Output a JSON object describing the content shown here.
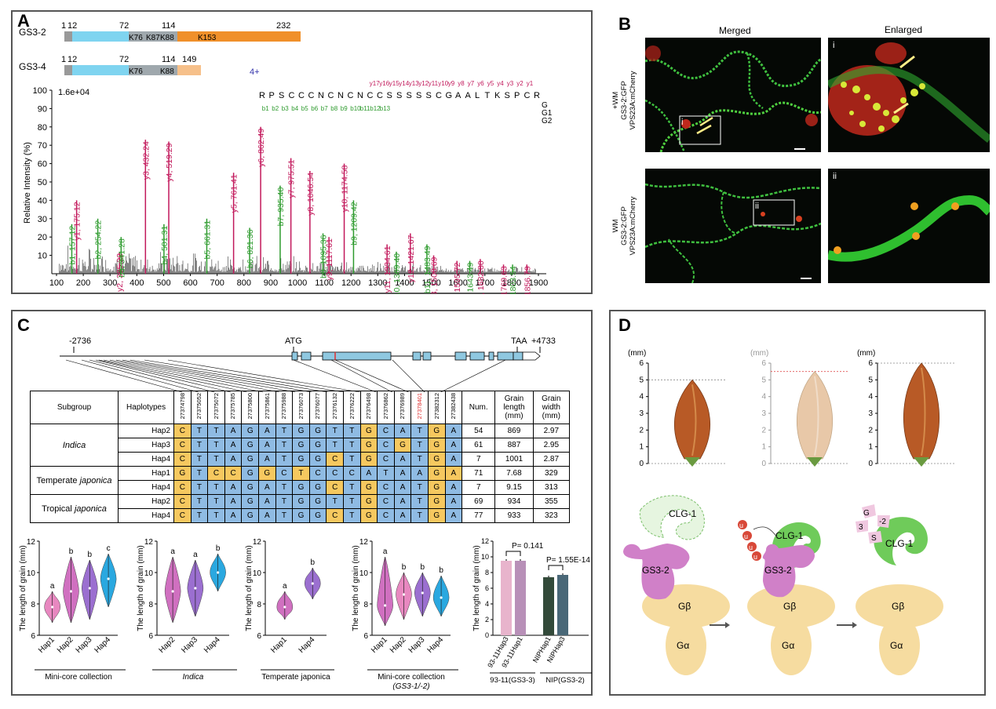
{
  "figure": {
    "panel_labels": [
      "A",
      "B",
      "C",
      "D"
    ]
  },
  "panel_a": {
    "proteins": [
      {
        "name": "GS3-2",
        "ticks": [
          "1",
          "12",
          "72",
          "114",
          "232"
        ],
        "sites": [
          "K76",
          "K87",
          "K88",
          "K153"
        ]
      },
      {
        "name": "GS3-4",
        "ticks": [
          "1",
          "12",
          "72",
          "114",
          "149"
        ],
        "sites": [
          "K76",
          "K88"
        ]
      }
    ],
    "charge": "4+",
    "peptide": [
      "R",
      "P",
      "S",
      "C",
      "C",
      "C",
      "N",
      "C",
      "N",
      "C",
      "N",
      "C",
      "C",
      "S",
      "S",
      "S",
      "S",
      "S",
      "C",
      "G",
      "A",
      "A",
      "L",
      "T",
      "K",
      "S",
      "P",
      "C",
      "R"
    ],
    "y_ions_top": [
      "y17",
      "y16",
      "y15",
      "y14",
      "y13",
      "y12",
      "y11",
      "y10",
      "y9",
      "y8",
      "y7",
      "y6",
      "y5",
      "y4",
      "y3",
      "y2",
      "y1"
    ],
    "b_ions_bottom": [
      "b1",
      "b2",
      "b3",
      "b4",
      "b5",
      "b6",
      "b7",
      "b8",
      "b9",
      "b10",
      "b11",
      "b12",
      "b13"
    ],
    "gly_mod": [
      "G",
      "G1",
      "G2"
    ],
    "scale_label": "1.6e+04",
    "ylabel": "Relative Intensity (%)",
    "yticks": [
      "10",
      "20",
      "30",
      "40",
      "50",
      "60",
      "70",
      "80",
      "90",
      "100"
    ],
    "xticks": [
      "100",
      "200",
      "300",
      "400",
      "500",
      "600",
      "700",
      "800",
      "900",
      "1000",
      "1100",
      "1200",
      "1300",
      "1400",
      "1500",
      "1600",
      "1700",
      "1800",
      "1900"
    ],
    "peaks": [
      {
        "label": "b1, 157.12",
        "mz": 157.12,
        "rel": 27,
        "ion": "b"
      },
      {
        "label": "y1, 175.12",
        "mz": 175.12,
        "rel": 40,
        "ion": "y"
      },
      {
        "label": "b2, 254.22",
        "mz": 254.22,
        "rel": 30,
        "ion": "b"
      },
      {
        "label": "y2, 335.22",
        "mz": 335.22,
        "rel": 12,
        "ion": "y"
      },
      {
        "label": "b3, 341.28",
        "mz": 341.28,
        "rel": 20,
        "ion": "b"
      },
      {
        "label": "y3, 432.24",
        "mz": 432.24,
        "rel": 73,
        "ion": "y"
      },
      {
        "label": "b4, 501.31",
        "mz": 501.31,
        "rel": 27,
        "ion": "b"
      },
      {
        "label": "y4, 519.29",
        "mz": 519.29,
        "rel": 72,
        "ion": "y"
      },
      {
        "label": "b5, 661.31",
        "mz": 661.31,
        "rel": 30,
        "ion": "b"
      },
      {
        "label": "y5, 761.41",
        "mz": 761.41,
        "rel": 55,
        "ion": "y"
      },
      {
        "label": "b6, 821.36",
        "mz": 821.36,
        "rel": 25,
        "ion": "b"
      },
      {
        "label": "y6, 862.49",
        "mz": 862.49,
        "rel": 80,
        "ion": "y"
      },
      {
        "label": "b7, 935.40",
        "mz": 935.4,
        "rel": 48,
        "ion": "b"
      },
      {
        "label": "y7, 975.51",
        "mz": 975.51,
        "rel": 63,
        "ion": "y"
      },
      {
        "label": "y8, 1046.54",
        "mz": 1046.54,
        "rel": 56,
        "ion": "y"
      },
      {
        "label": "b8, 1095.36",
        "mz": 1095.36,
        "rel": 22,
        "ion": "b"
      },
      {
        "label": "y9, 1117.61",
        "mz": 1117.61,
        "rel": 20,
        "ion": "y"
      },
      {
        "label": "y10, 1174.58",
        "mz": 1174.58,
        "rel": 60,
        "ion": "y"
      },
      {
        "label": "b9, 1209.42",
        "mz": 1209.42,
        "rel": 40,
        "ion": "b"
      },
      {
        "label": "y11, 1334.61",
        "mz": 1334.61,
        "rel": 16,
        "ion": "y"
      },
      {
        "label": "b10, 1369.40",
        "mz": 1369.4,
        "rel": 12,
        "ion": "b"
      },
      {
        "label": "y12, 1421.67",
        "mz": 1421.67,
        "rel": 22,
        "ion": "y"
      },
      {
        "label": "b11, 1483.49",
        "mz": 1483.49,
        "rel": 16,
        "ion": "b"
      },
      {
        "label": "y13, 1508.69",
        "mz": 1508.69,
        "rel": 10,
        "ion": "y"
      },
      {
        "label": "y14, 1595.72",
        "mz": 1595.72,
        "rel": 7,
        "ion": "y"
      },
      {
        "label": "b12, 1643.49",
        "mz": 1643.49,
        "rel": 7,
        "ion": "b"
      },
      {
        "label": "y15, 1682.80",
        "mz": 1682.8,
        "rel": 8,
        "ion": "y"
      },
      {
        "label": "y16, 1769.63",
        "mz": 1769.63,
        "rel": 5,
        "ion": "y"
      },
      {
        "label": "b13, 1803.54",
        "mz": 1803.54,
        "rel": 5,
        "ion": "b"
      },
      {
        "label": "y17, 1856.79",
        "mz": 1856.79,
        "rel": 5,
        "ion": "y"
      }
    ]
  },
  "panel_b": {
    "col_merged": "Merged",
    "col_enlarged": "Enlarged",
    "row1_label": [
      "+WM",
      "GS3-2:GFP",
      "VPS23A:mCherry"
    ],
    "row2_label": [
      "WM",
      "GS3-2:GFP",
      "VPS23A:mCherry"
    ],
    "inset1": "i",
    "inset2": "ii"
  },
  "panel_c": {
    "gene": {
      "left": "-2736",
      "atg": "ATG",
      "taa": "TAA",
      "right": "+4733"
    },
    "headers": {
      "subgroup": "Subgroup",
      "haplotypes": "Haplotypes",
      "num": "Num.",
      "grain_length": "Grain length (mm)",
      "grain_width": "Grain width (mm)"
    },
    "positions": [
      "27374798",
      "27375052",
      "27375072",
      "27375785",
      "27375800",
      "27375861",
      "27375988",
      "27376073",
      "27376077",
      "27376132",
      "27376222",
      "27376498",
      "27376862",
      "27376989",
      "27378401",
      "27382312",
      "27382438"
    ],
    "rows": [
      {
        "subgroup": "Indica",
        "hap": "Hap2",
        "bases": [
          "C",
          "T",
          "T",
          "A",
          "G",
          "A",
          "T",
          "G",
          "G",
          "T",
          "T",
          "G",
          "C",
          "A",
          "T",
          "G",
          "A"
        ],
        "num": "54",
        "len": "869",
        "wid": "2.97"
      },
      {
        "subgroup": "",
        "hap": "Hap3",
        "bases": [
          "C",
          "T",
          "T",
          "A",
          "G",
          "A",
          "T",
          "G",
          "G",
          "T",
          "T",
          "G",
          "C",
          "G",
          "T",
          "G",
          "A"
        ],
        "num": "61",
        "len": "887",
        "wid": "2.95"
      },
      {
        "subgroup": "",
        "hap": "Hap4",
        "bases": [
          "C",
          "T",
          "T",
          "A",
          "G",
          "A",
          "T",
          "G",
          "G",
          "C",
          "T",
          "G",
          "C",
          "A",
          "T",
          "G",
          "A"
        ],
        "num": "7",
        "len": "1001",
        "wid": "2.87"
      },
      {
        "subgroup": "Temperate japonica",
        "hap": "Hap1",
        "bases": [
          "G",
          "T",
          "C",
          "C",
          "G",
          "G",
          "C",
          "T",
          "C",
          "C",
          "C",
          "A",
          "T",
          "A",
          "A",
          "G",
          "A"
        ],
        "num": "71",
        "len": "7.68",
        "wid": "329"
      },
      {
        "subgroup": "",
        "hap": "Hap4",
        "bases": [
          "C",
          "T",
          "T",
          "A",
          "G",
          "A",
          "T",
          "G",
          "G",
          "C",
          "T",
          "G",
          "C",
          "A",
          "T",
          "G",
          "A"
        ],
        "num": "7",
        "len": "9.15",
        "wid": "313"
      },
      {
        "subgroup": "Tropical japonica",
        "hap": "Hap2",
        "bases": [
          "C",
          "T",
          "T",
          "A",
          "G",
          "A",
          "T",
          "G",
          "G",
          "T",
          "T",
          "G",
          "C",
          "A",
          "T",
          "G",
          "A"
        ],
        "num": "69",
        "len": "934",
        "wid": "355"
      },
      {
        "subgroup": "",
        "hap": "Hap4",
        "bases": [
          "C",
          "T",
          "T",
          "A",
          "G",
          "A",
          "T",
          "G",
          "G",
          "C",
          "T",
          "G",
          "C",
          "A",
          "T",
          "G",
          "A"
        ],
        "num": "77",
        "len": "933",
        "wid": "323"
      }
    ],
    "colors": {
      "blue": "#8fbbe3",
      "yellow": "#f6c85f",
      "red_header": "#e03030"
    },
    "violin_ylabel": "The length of grain (mm)",
    "violins": [
      {
        "groups": [
          "Hap1",
          "Hap2",
          "Hap3",
          "Hap4"
        ],
        "letters": [
          "a",
          "b",
          "b",
          "c"
        ],
        "medians": [
          7.8,
          8.8,
          9.0,
          9.6
        ],
        "ranges": [
          [
            6.8,
            8.8
          ],
          [
            6.8,
            11.0
          ],
          [
            7.0,
            10.8
          ],
          [
            7.8,
            11.2
          ]
        ],
        "colors": [
          "#e888c0",
          "#d070c0",
          "#9b6fd0",
          "#2aa8e0"
        ],
        "caption": "Mini-core collection",
        "caption2": ""
      },
      {
        "groups": [
          "Hap2",
          "Hap3",
          "Hap4"
        ],
        "letters": [
          "a",
          "a",
          "b"
        ],
        "medians": [
          8.8,
          9.0,
          10.0
        ],
        "ranges": [
          [
            6.8,
            11.0
          ],
          [
            7.2,
            10.8
          ],
          [
            8.8,
            11.2
          ]
        ],
        "colors": [
          "#d070c0",
          "#9b6fd0",
          "#2aa8e0"
        ],
        "caption": "Indica",
        "caption2": ""
      },
      {
        "groups": [
          "Hap1",
          "Hap4"
        ],
        "letters": [
          "a",
          "b"
        ],
        "medians": [
          7.8,
          9.3
        ],
        "ranges": [
          [
            7.0,
            8.8
          ],
          [
            8.3,
            10.3
          ]
        ],
        "colors": [
          "#d070c0",
          "#9b6fd0"
        ],
        "caption": "Temperate japonica",
        "caption2": ""
      },
      {
        "groups": [
          "Hap1",
          "Hap2",
          "Hap3",
          "Hap4"
        ],
        "letters": [
          "a",
          "b",
          "b",
          "b"
        ],
        "medians": [
          7.9,
          8.6,
          8.7,
          8.4
        ],
        "ranges": [
          [
            6.6,
            11.0
          ],
          [
            7.0,
            10.0
          ],
          [
            7.2,
            10.0
          ],
          [
            7.2,
            9.8
          ]
        ],
        "colors": [
          "#d070c0",
          "#e888c0",
          "#9b6fd0",
          "#2aa8e0"
        ],
        "caption": "Mini-core collection",
        "caption2": "(GS3-1/-2)"
      }
    ],
    "violin_ylim": [
      6,
      12
    ],
    "violin_yticks": [
      "6",
      "8",
      "10",
      "12"
    ],
    "bars": {
      "p1": "P= 0.141",
      "p2": "P= 1.55E-14",
      "groups": [
        {
          "label": "93-11Hap3",
          "value": 9.5,
          "color": "#e8b4cc"
        },
        {
          "label": "93-11Hap1",
          "value": 9.5,
          "color": "#b890b8"
        },
        {
          "label": "NIPHap1",
          "value": 7.4,
          "color": "#334a3a"
        },
        {
          "label": "NIPHap3",
          "value": 7.7,
          "color": "#4a6878"
        }
      ],
      "caption1": "93-11(GS3-3)",
      "caption2": "NIP(GS3-2)",
      "yticks": [
        "0",
        "2",
        "4",
        "6",
        "8",
        "10",
        "12"
      ]
    }
  },
  "panel_d": {
    "mm_label": "(mm)",
    "yticks": [
      "0",
      "1",
      "2",
      "3",
      "4",
      "5",
      "6"
    ],
    "grains": [
      {
        "length": 5.0
      },
      {
        "length": 5.5
      },
      {
        "length": 6.0
      }
    ],
    "labels": {
      "clg1": "CLG-1",
      "gs32": "GS3-2",
      "gbeta": "Gβ",
      "galpha": "Gα",
      "ub": "u",
      "frag": [
        "G",
        "3",
        "S",
        "-2"
      ]
    }
  }
}
